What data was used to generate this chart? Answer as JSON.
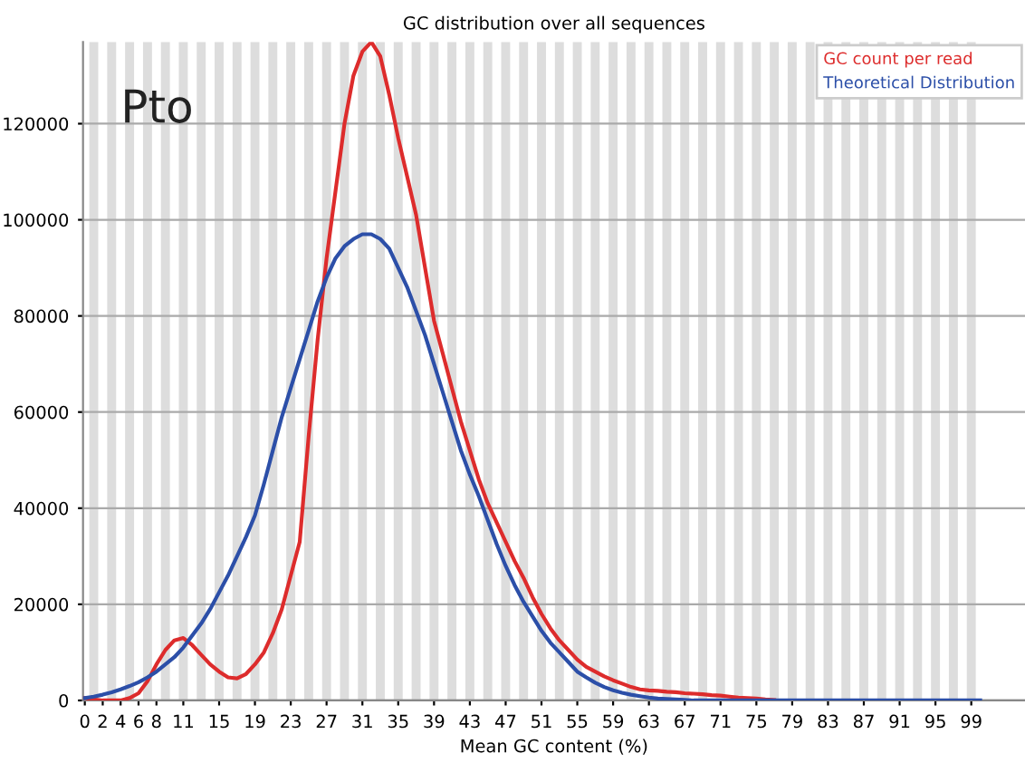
{
  "chart_data": {
    "type": "line",
    "title": "GC distribution over all sequences",
    "xlabel": "Mean GC content (%)",
    "annotations": [
      "Pto"
    ],
    "x": [
      0,
      1,
      2,
      3,
      4,
      5,
      6,
      7,
      8,
      9,
      10,
      11,
      12,
      13,
      14,
      15,
      16,
      17,
      18,
      19,
      20,
      21,
      22,
      23,
      24,
      25,
      26,
      27,
      28,
      29,
      30,
      31,
      32,
      33,
      34,
      35,
      36,
      37,
      38,
      39,
      40,
      41,
      42,
      43,
      44,
      45,
      46,
      47,
      48,
      49,
      50,
      51,
      52,
      53,
      54,
      55,
      56,
      57,
      58,
      59,
      60,
      61,
      62,
      63,
      64,
      65,
      66,
      67,
      68,
      69,
      70,
      71,
      72,
      73,
      74,
      75,
      76,
      77,
      78,
      79,
      80,
      81,
      82,
      83,
      84,
      85,
      86,
      87,
      88,
      89,
      90,
      91,
      92,
      93,
      94,
      95,
      96,
      97,
      98,
      99,
      100
    ],
    "series": [
      {
        "name": "GC count per read",
        "color": "#dd2c2c",
        "values": [
          500,
          200,
          0,
          0,
          0,
          500,
          1500,
          4000,
          7500,
          10500,
          12500,
          13000,
          11500,
          9500,
          7500,
          6000,
          4800,
          4600,
          5500,
          7500,
          10000,
          14000,
          19000,
          26000,
          33000,
          55000,
          75000,
          92000,
          106000,
          120000,
          130000,
          135000,
          137000,
          134000,
          126000,
          117000,
          109000,
          101000,
          90000,
          79000,
          72000,
          65000,
          58000,
          52000,
          46000,
          41000,
          37000,
          33000,
          29000,
          25500,
          21500,
          18000,
          15000,
          12500,
          10500,
          8500,
          7000,
          6000,
          5000,
          4200,
          3500,
          2800,
          2300,
          2100,
          2000,
          1800,
          1700,
          1500,
          1400,
          1300,
          1100,
          1000,
          800,
          600,
          500,
          400,
          200,
          100,
          null,
          null,
          null,
          null,
          null,
          null,
          null,
          null,
          null,
          null,
          null,
          null,
          null,
          null,
          null,
          null,
          null,
          null,
          null,
          null,
          null,
          null,
          null
        ]
      },
      {
        "name": "Theoretical Distribution",
        "color": "#2c4fa8",
        "values": [
          500,
          800,
          1200,
          1700,
          2300,
          3000,
          3800,
          4800,
          6000,
          7500,
          9000,
          11000,
          13500,
          16000,
          19000,
          22500,
          26000,
          30000,
          34000,
          38500,
          45000,
          52000,
          59000,
          65000,
          71000,
          77000,
          83000,
          88000,
          92000,
          94500,
          96000,
          97000,
          97000,
          96000,
          94000,
          90000,
          86000,
          81000,
          76000,
          70000,
          64000,
          58000,
          52000,
          47000,
          42500,
          37500,
          32500,
          28000,
          24000,
          20500,
          17500,
          14500,
          12000,
          10000,
          8000,
          6000,
          4800,
          3700,
          2800,
          2100,
          1600,
          1200,
          900,
          600,
          400,
          300,
          200,
          100,
          0,
          0,
          0,
          0,
          0,
          0,
          0,
          0,
          0,
          0,
          0,
          0,
          0,
          0,
          0,
          0,
          0,
          0,
          0,
          0,
          0,
          0,
          0,
          0,
          0,
          0,
          0,
          0,
          0,
          0,
          0,
          0,
          0
        ]
      }
    ],
    "xlim": [
      -0.2,
      105
    ],
    "ylim": [
      0,
      137000
    ],
    "xticks": [
      0,
      2,
      4,
      6,
      8,
      11,
      15,
      19,
      23,
      27,
      31,
      35,
      39,
      43,
      47,
      51,
      55,
      59,
      63,
      67,
      71,
      75,
      79,
      83,
      87,
      91,
      95,
      99
    ],
    "yticks": [
      0,
      20000,
      40000,
      60000,
      80000,
      100000,
      120000
    ],
    "bands": [
      {
        "axis": "x",
        "from": 0.5,
        "to": 1.5,
        "color": "#dddddd"
      },
      {
        "axis": "x",
        "from": 2.5,
        "to": 3.5,
        "color": "#dddddd"
      },
      {
        "axis": "x",
        "from": 4.5,
        "to": 5.5,
        "color": "#dddddd"
      },
      {
        "axis": "x",
        "from": 6.5,
        "to": 7.5,
        "color": "#dddddd"
      },
      {
        "axis": "x",
        "from": 8.5,
        "to": 9.5,
        "color": "#dddddd"
      },
      {
        "axis": "x",
        "from": 10.5,
        "to": 11.5,
        "color": "#dddddd"
      },
      {
        "axis": "x",
        "from": 12.5,
        "to": 13.5,
        "color": "#dddddd"
      },
      {
        "axis": "x",
        "from": 14.5,
        "to": 15.5,
        "color": "#dddddd"
      },
      {
        "axis": "x",
        "from": 16.5,
        "to": 17.5,
        "color": "#dddddd"
      },
      {
        "axis": "x",
        "from": 18.5,
        "to": 19.5,
        "color": "#dddddd"
      },
      {
        "axis": "x",
        "from": 20.5,
        "to": 21.5,
        "color": "#dddddd"
      },
      {
        "axis": "x",
        "from": 22.5,
        "to": 23.5,
        "color": "#dddddd"
      },
      {
        "axis": "x",
        "from": 24.5,
        "to": 25.5,
        "color": "#dddddd"
      },
      {
        "axis": "x",
        "from": 26.5,
        "to": 27.5,
        "color": "#dddddd"
      },
      {
        "axis": "x",
        "from": 28.5,
        "to": 29.5,
        "color": "#dddddd"
      },
      {
        "axis": "x",
        "from": 30.5,
        "to": 31.5,
        "color": "#dddddd"
      },
      {
        "axis": "x",
        "from": 32.5,
        "to": 33.5,
        "color": "#dddddd"
      },
      {
        "axis": "x",
        "from": 34.5,
        "to": 35.5,
        "color": "#dddddd"
      },
      {
        "axis": "x",
        "from": 36.5,
        "to": 37.5,
        "color": "#dddddd"
      },
      {
        "axis": "x",
        "from": 38.5,
        "to": 39.5,
        "color": "#dddddd"
      },
      {
        "axis": "x",
        "from": 40.5,
        "to": 41.5,
        "color": "#dddddd"
      },
      {
        "axis": "x",
        "from": 42.5,
        "to": 43.5,
        "color": "#dddddd"
      },
      {
        "axis": "x",
        "from": 44.5,
        "to": 45.5,
        "color": "#dddddd"
      },
      {
        "axis": "x",
        "from": 46.5,
        "to": 47.5,
        "color": "#dddddd"
      },
      {
        "axis": "x",
        "from": 48.5,
        "to": 49.5,
        "color": "#dddddd"
      },
      {
        "axis": "x",
        "from": 50.5,
        "to": 51.5,
        "color": "#dddddd"
      },
      {
        "axis": "x",
        "from": 52.5,
        "to": 53.5,
        "color": "#dddddd"
      },
      {
        "axis": "x",
        "from": 54.5,
        "to": 55.5,
        "color": "#dddddd"
      },
      {
        "axis": "x",
        "from": 56.5,
        "to": 57.5,
        "color": "#dddddd"
      },
      {
        "axis": "x",
        "from": 58.5,
        "to": 59.5,
        "color": "#dddddd"
      },
      {
        "axis": "x",
        "from": 60.5,
        "to": 61.5,
        "color": "#dddddd"
      },
      {
        "axis": "x",
        "from": 62.5,
        "to": 63.5,
        "color": "#dddddd"
      },
      {
        "axis": "x",
        "from": 64.5,
        "to": 65.5,
        "color": "#dddddd"
      },
      {
        "axis": "x",
        "from": 66.5,
        "to": 67.5,
        "color": "#dddddd"
      },
      {
        "axis": "x",
        "from": 68.5,
        "to": 69.5,
        "color": "#dddddd"
      },
      {
        "axis": "x",
        "from": 70.5,
        "to": 71.5,
        "color": "#dddddd"
      },
      {
        "axis": "x",
        "from": 72.5,
        "to": 73.5,
        "color": "#dddddd"
      },
      {
        "axis": "x",
        "from": 74.5,
        "to": 75.5,
        "color": "#dddddd"
      },
      {
        "axis": "x",
        "from": 76.5,
        "to": 77.5,
        "color": "#dddddd"
      },
      {
        "axis": "x",
        "from": 78.5,
        "to": 79.5,
        "color": "#dddddd"
      },
      {
        "axis": "x",
        "from": 80.5,
        "to": 81.5,
        "color": "#dddddd"
      },
      {
        "axis": "x",
        "from": 82.5,
        "to": 83.5,
        "color": "#dddddd"
      },
      {
        "axis": "x",
        "from": 84.5,
        "to": 85.5,
        "color": "#dddddd"
      },
      {
        "axis": "x",
        "from": 86.5,
        "to": 87.5,
        "color": "#dddddd"
      },
      {
        "axis": "x",
        "from": 88.5,
        "to": 89.5,
        "color": "#dddddd"
      },
      {
        "axis": "x",
        "from": 90.5,
        "to": 91.5,
        "color": "#dddddd"
      },
      {
        "axis": "x",
        "from": 92.5,
        "to": 93.5,
        "color": "#dddddd"
      },
      {
        "axis": "x",
        "from": 94.5,
        "to": 95.5,
        "color": "#dddddd"
      },
      {
        "axis": "x",
        "from": 96.5,
        "to": 97.5,
        "color": "#dddddd"
      },
      {
        "axis": "x",
        "from": 98.5,
        "to": 99.5,
        "color": "#dddddd"
      }
    ],
    "grid": "y",
    "legend": "top right",
    "marker": "none",
    "line_style": "solid"
  }
}
